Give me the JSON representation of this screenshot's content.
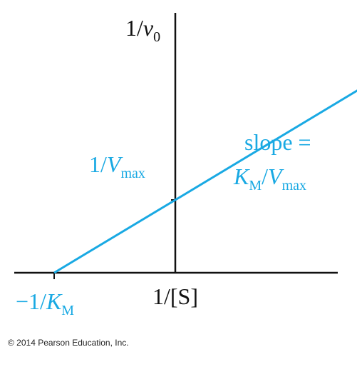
{
  "chart_data": {
    "type": "line",
    "title": "",
    "xlabel": "1/[S]",
    "ylabel": "1/v0",
    "xlim": [
      -1.5,
      3.0
    ],
    "ylim": [
      -0.1,
      2.8
    ],
    "grid": false,
    "series": [
      {
        "x": [
          -1.0,
          3.0
        ],
        "y": [
          0.0,
          2.4
        ]
      }
    ],
    "annotations": {
      "x_intercept": {
        "x": -1.0,
        "y": 0.0,
        "label": "−1/K_M"
      },
      "y_intercept": {
        "x": 0.0,
        "y": 0.6,
        "label": "1/V_max"
      },
      "slope": {
        "line1": "slope =",
        "line2": "K_M/V_max",
        "value": 0.6
      }
    },
    "colors": {
      "line": "#19a9e3",
      "axes": "#111111",
      "text": "#111111"
    }
  },
  "labels": {
    "x_axis": {
      "main": "1/[S]"
    },
    "y_axis": {
      "main": "1/",
      "var": "v",
      "sub": "0"
    },
    "y_intercept": {
      "main": "1/",
      "var": "V",
      "sub": "max"
    },
    "x_intercept": {
      "main": "−1/",
      "var": "K",
      "sub": "M"
    },
    "slope_line1": "slope =",
    "slope_line2": {
      "k": "K",
      "k_sub": "M",
      "sep": "/",
      "v": "V",
      "v_sub": "max"
    }
  },
  "footer": {
    "copyright": "© 2014 Pearson Education, Inc."
  }
}
